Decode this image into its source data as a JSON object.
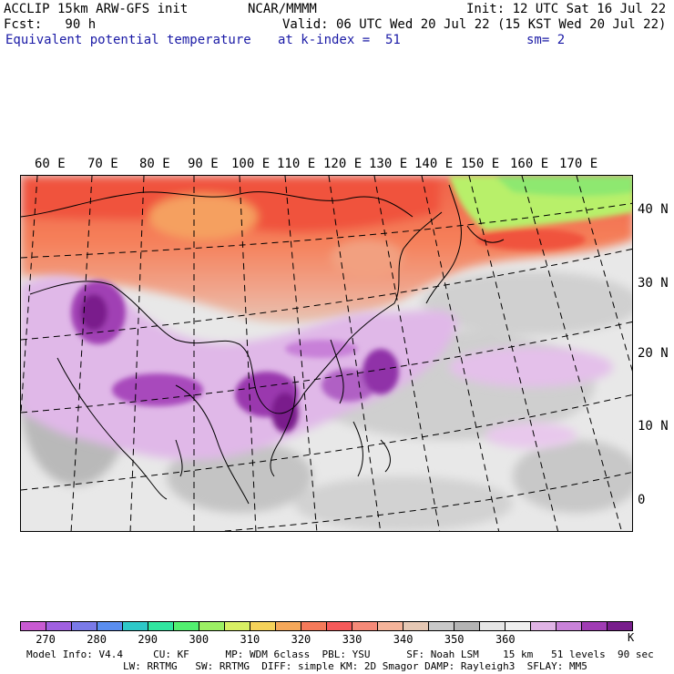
{
  "header": {
    "model": "ACCLIP 15km ARW-GFS init",
    "center": "NCAR/MMMM",
    "init": "Init: 12 UTC Sat 16 Jul 22",
    "fcst": "Fcst:   90 h",
    "valid": "Valid: 06 UTC Wed 20 Jul 22 (15 KST Wed 20 Jul 22)",
    "field": "Equivalent potential temperature",
    "level": "at k-index =  51",
    "smooth": "sm= 2"
  },
  "map": {
    "lon_labels": [
      "60 E",
      "70 E",
      "80 E",
      "90 E",
      "100 E",
      "110 E",
      "120 E",
      "130 E",
      "140 E",
      "150 E",
      "160 E",
      "170 E"
    ],
    "lat_labels": [
      "40 N",
      "30 N",
      "20 N",
      "10 N",
      "0"
    ]
  },
  "colorbar": {
    "unit": "K",
    "ticks": [
      "270",
      "280",
      "290",
      "300",
      "310",
      "320",
      "330",
      "340",
      "350",
      "360"
    ],
    "colors": [
      "#c85ad2",
      "#a060e0",
      "#7a7ae8",
      "#5a8ef0",
      "#2ec8c8",
      "#30e6a0",
      "#52f070",
      "#9cf064",
      "#d8f064",
      "#f5d25a",
      "#f5a85a",
      "#f57a5a",
      "#f55a5a",
      "#f58a78",
      "#f5b49a",
      "#e6c8b4",
      "#c8c8c8",
      "#b4b4b4",
      "#e6e6e6",
      "#f0f0f0",
      "#e0b4e6",
      "#c882d8",
      "#a03cb4",
      "#781e8c"
    ]
  },
  "footer": {
    "line1": "Model Info: V4.4     CU: KF      MP: WDM 6class  PBL: YSU      SF: Noah LSM    15 km   51 levels  90 sec",
    "line2": "                LW: RRTMG   SW: RRTMG  DIFF: simple KM: 2D Smagor DAMP: Rayleigh3  SFLAY: MM5"
  }
}
